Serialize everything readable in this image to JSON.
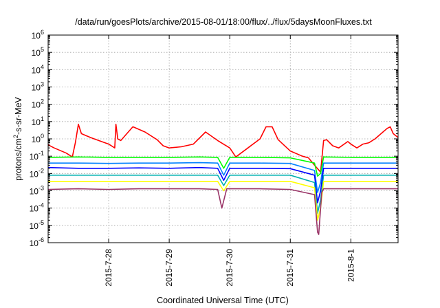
{
  "chart_data": {
    "type": "line",
    "title": "/data/run/goesPlots/archive/2015-08-01/18:00/flux/../flux/5daysMoonFluxes.txt",
    "xlabel": "Coordinated Universal Time (UTC)",
    "ylabel": {
      "pre": "protons/cm",
      "sup": "2",
      "post": "-s-sr-MeV"
    },
    "yscale": "log",
    "ylim_exponents": [
      -6,
      6
    ],
    "y_ticks": [
      {
        "base": "10",
        "exp": "-6"
      },
      {
        "base": "10",
        "exp": "-5"
      },
      {
        "base": "10",
        "exp": "-4"
      },
      {
        "base": "10",
        "exp": "-3"
      },
      {
        "base": "10",
        "exp": "-2"
      },
      {
        "base": "10",
        "exp": "-1"
      },
      {
        "base": "10",
        "exp": "0"
      },
      {
        "base": "10",
        "exp": "1"
      },
      {
        "base": "10",
        "exp": "2"
      },
      {
        "base": "10",
        "exp": "3"
      },
      {
        "base": "10",
        "exp": "4"
      },
      {
        "base": "10",
        "exp": "5"
      },
      {
        "base": "10",
        "exp": "6"
      }
    ],
    "x_ticks": [
      "2015-7-28",
      "2015-7-29",
      "2015-7-30",
      "2015-7-31",
      "2015-8-1"
    ],
    "x_tick_days": [
      1,
      2,
      3,
      4,
      5
    ],
    "xlim_days": [
      0.0,
      5.78
    ],
    "grid": true,
    "legend": "none",
    "series": [
      {
        "color": "#ff0000",
        "points": [
          [
            0.0,
            0.45
          ],
          [
            0.1,
            0.3
          ],
          [
            0.3,
            0.15
          ],
          [
            0.4,
            0.09
          ],
          [
            0.45,
            0.6
          ],
          [
            0.5,
            7.0
          ],
          [
            0.55,
            2.0
          ],
          [
            0.7,
            1.2
          ],
          [
            0.8,
            0.9
          ],
          [
            1.0,
            0.5
          ],
          [
            1.1,
            0.3
          ],
          [
            1.12,
            7.0
          ],
          [
            1.15,
            1.0
          ],
          [
            1.2,
            0.8
          ],
          [
            1.4,
            5.0
          ],
          [
            1.6,
            2.5
          ],
          [
            1.8,
            0.9
          ],
          [
            1.9,
            0.4
          ],
          [
            2.0,
            0.3
          ],
          [
            2.2,
            0.35
          ],
          [
            2.4,
            0.5
          ],
          [
            2.6,
            2.5
          ],
          [
            2.8,
            0.8
          ],
          [
            3.0,
            0.3
          ],
          [
            3.1,
            0.09
          ],
          [
            3.3,
            0.3
          ],
          [
            3.5,
            1.0
          ],
          [
            3.6,
            5.0
          ],
          [
            3.7,
            5.0
          ],
          [
            3.8,
            0.9
          ],
          [
            4.0,
            0.2
          ],
          [
            4.2,
            0.1
          ],
          [
            4.3,
            0.08
          ],
          [
            4.4,
            0.03
          ],
          [
            4.5,
            0.012
          ],
          [
            4.55,
            0.8
          ],
          [
            4.6,
            0.9
          ],
          [
            4.7,
            0.4
          ],
          [
            4.8,
            0.3
          ],
          [
            4.95,
            0.7
          ],
          [
            5.0,
            0.5
          ],
          [
            5.1,
            0.3
          ],
          [
            5.2,
            0.5
          ],
          [
            5.3,
            0.6
          ],
          [
            5.4,
            1.0
          ],
          [
            5.5,
            2.0
          ],
          [
            5.6,
            4.0
          ],
          [
            5.65,
            5.0
          ],
          [
            5.7,
            2.0
          ],
          [
            5.78,
            1.2
          ]
        ]
      },
      {
        "color": "#00ff00",
        "points": [
          [
            0.0,
            0.085
          ],
          [
            0.5,
            0.09
          ],
          [
            1.0,
            0.085
          ],
          [
            1.5,
            0.085
          ],
          [
            2.0,
            0.085
          ],
          [
            2.5,
            0.09
          ],
          [
            2.8,
            0.085
          ],
          [
            2.9,
            0.02
          ],
          [
            3.0,
            0.085
          ],
          [
            3.5,
            0.085
          ],
          [
            4.0,
            0.08
          ],
          [
            4.4,
            0.04
          ],
          [
            4.45,
            0.007
          ],
          [
            4.5,
            0.01
          ],
          [
            4.55,
            0.09
          ],
          [
            5.0,
            0.085
          ],
          [
            5.5,
            0.085
          ],
          [
            5.78,
            0.085
          ]
        ]
      },
      {
        "color": "#0080ff",
        "points": [
          [
            0.0,
            0.04
          ],
          [
            0.5,
            0.04
          ],
          [
            1.0,
            0.038
          ],
          [
            1.5,
            0.04
          ],
          [
            2.0,
            0.04
          ],
          [
            2.5,
            0.042
          ],
          [
            2.8,
            0.04
          ],
          [
            2.9,
            0.008
          ],
          [
            3.0,
            0.04
          ],
          [
            3.5,
            0.04
          ],
          [
            4.0,
            0.038
          ],
          [
            4.4,
            0.015
          ],
          [
            4.45,
            0.0008
          ],
          [
            4.5,
            0.003
          ],
          [
            4.55,
            0.04
          ],
          [
            5.0,
            0.04
          ],
          [
            5.5,
            0.04
          ],
          [
            5.78,
            0.04
          ]
        ]
      },
      {
        "color": "#0000ff",
        "points": [
          [
            0.0,
            0.022
          ],
          [
            0.5,
            0.02
          ],
          [
            1.0,
            0.02
          ],
          [
            1.5,
            0.021
          ],
          [
            2.0,
            0.02
          ],
          [
            2.5,
            0.022
          ],
          [
            2.8,
            0.02
          ],
          [
            2.9,
            0.004
          ],
          [
            3.0,
            0.02
          ],
          [
            3.5,
            0.02
          ],
          [
            4.0,
            0.019
          ],
          [
            4.4,
            0.008
          ],
          [
            4.45,
            0.0002
          ],
          [
            4.5,
            0.001
          ],
          [
            4.55,
            0.02
          ],
          [
            5.0,
            0.02
          ],
          [
            5.5,
            0.02
          ],
          [
            5.78,
            0.02
          ]
        ]
      },
      {
        "color": "#00b0b0",
        "points": [
          [
            0.0,
            0.008
          ],
          [
            0.5,
            0.008
          ],
          [
            1.0,
            0.008
          ],
          [
            1.5,
            0.008
          ],
          [
            2.0,
            0.008
          ],
          [
            2.5,
            0.008
          ],
          [
            2.8,
            0.008
          ],
          [
            2.9,
            0.002
          ],
          [
            3.0,
            0.008
          ],
          [
            3.5,
            0.008
          ],
          [
            4.0,
            0.008
          ],
          [
            4.4,
            0.003
          ],
          [
            4.45,
            5e-05
          ],
          [
            4.5,
            0.0003
          ],
          [
            4.55,
            0.008
          ],
          [
            5.0,
            0.008
          ],
          [
            5.5,
            0.008
          ],
          [
            5.78,
            0.008
          ]
        ]
      },
      {
        "color": "#ffff00",
        "points": [
          [
            0.0,
            0.0035
          ],
          [
            0.5,
            0.0035
          ],
          [
            1.0,
            0.0035
          ],
          [
            1.5,
            0.0035
          ],
          [
            2.0,
            0.0035
          ],
          [
            2.5,
            0.0035
          ],
          [
            2.8,
            0.0035
          ],
          [
            2.9,
            0.001
          ],
          [
            3.0,
            0.0035
          ],
          [
            3.5,
            0.0035
          ],
          [
            4.0,
            0.0035
          ],
          [
            4.4,
            0.0015
          ],
          [
            4.45,
            2e-05
          ],
          [
            4.5,
            0.0001
          ],
          [
            4.55,
            0.0035
          ],
          [
            5.0,
            0.0035
          ],
          [
            5.5,
            0.0035
          ],
          [
            5.78,
            0.0035
          ]
        ]
      },
      {
        "color": "#993366",
        "points": [
          [
            0.0,
            0.0012
          ],
          [
            0.5,
            0.0013
          ],
          [
            1.0,
            0.0012
          ],
          [
            1.5,
            0.0013
          ],
          [
            2.0,
            0.0013
          ],
          [
            2.5,
            0.0013
          ],
          [
            2.8,
            0.0012
          ],
          [
            2.87,
            0.0001
          ],
          [
            2.95,
            0.0013
          ],
          [
            3.5,
            0.0013
          ],
          [
            4.0,
            0.0012
          ],
          [
            4.4,
            0.0006
          ],
          [
            4.45,
            4e-06
          ],
          [
            4.47,
            3e-06
          ],
          [
            4.52,
            0.0008
          ],
          [
            4.55,
            0.0013
          ],
          [
            5.0,
            0.0013
          ],
          [
            5.5,
            0.0013
          ],
          [
            5.78,
            0.0013
          ]
        ]
      }
    ]
  }
}
